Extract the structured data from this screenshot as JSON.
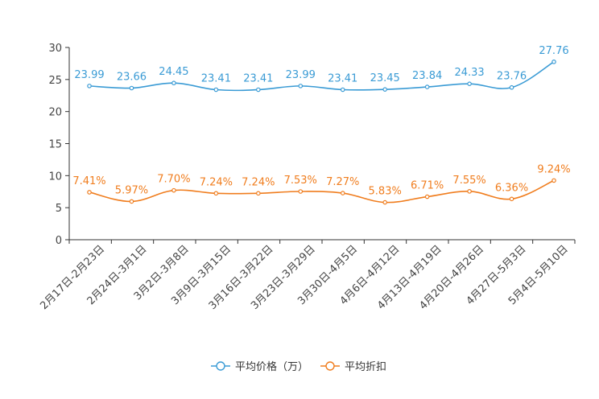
{
  "chart_data": {
    "type": "line",
    "title": "",
    "xlabel": "",
    "ylabel": "",
    "ylim": [
      0,
      30
    ],
    "yticks": [
      0,
      5,
      10,
      15,
      20,
      25,
      30
    ],
    "categories": [
      "2月17日-2月23日",
      "2月24日-3月1日",
      "3月2日-3月8日",
      "3月9日-3月15日",
      "3月16日-3月22日",
      "3月23日-3月29日",
      "3月30日-4月5日",
      "4月6日-4月12日",
      "4月13日-4月19日",
      "4月20日-4月26日",
      "4月27日-5月3日",
      "5月4日-5月10日"
    ],
    "series": [
      {
        "name": "平均价格（万）",
        "color": "#3a9bd5",
        "values": [
          23.99,
          23.66,
          24.45,
          23.41,
          23.41,
          23.99,
          23.41,
          23.45,
          23.84,
          24.33,
          23.76,
          27.76
        ],
        "labels": [
          "23.99",
          "23.66",
          "24.45",
          "23.41",
          "23.41",
          "23.99",
          "23.41",
          "23.45",
          "23.84",
          "24.33",
          "23.76",
          "27.76"
        ]
      },
      {
        "name": "平均折扣",
        "color": "#f07d1e",
        "values": [
          7.41,
          5.97,
          7.7,
          7.24,
          7.24,
          7.53,
          7.27,
          5.83,
          6.71,
          7.55,
          6.36,
          9.24
        ],
        "labels": [
          "7.41%",
          "5.97%",
          "7.70%",
          "7.24%",
          "7.24%",
          "7.53%",
          "7.27%",
          "5.83%",
          "6.71%",
          "7.55%",
          "6.36%",
          "9.24%"
        ]
      }
    ],
    "legend": "bottom-center",
    "grid": false
  }
}
